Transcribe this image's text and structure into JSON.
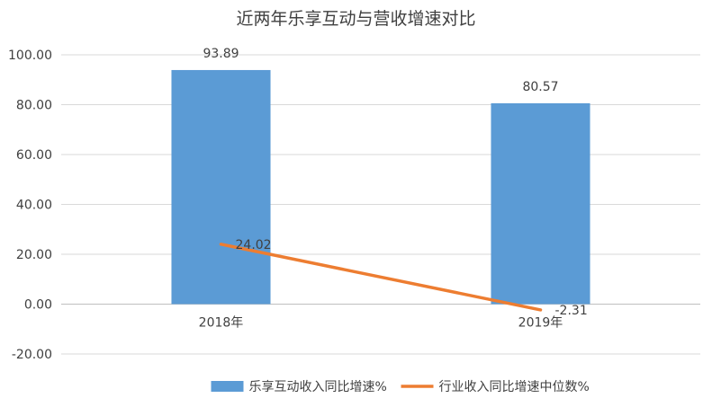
{
  "chart_data": {
    "type": "bar",
    "title": "近两年乐享互动与营收增速对比",
    "categories": [
      "2018年",
      "2019年"
    ],
    "series": [
      {
        "name": "乐享互动收入同比增速%",
        "type": "bar",
        "color": "#5B9BD5",
        "values": [
          93.89,
          80.57
        ],
        "labels": [
          "93.89",
          "80.57"
        ]
      },
      {
        "name": "行业收入同比增速中位数%",
        "type": "line",
        "color": "#ED7D31",
        "values": [
          24.02,
          -2.31
        ],
        "labels": [
          "24.02",
          "-2.31"
        ]
      }
    ],
    "ylim": [
      -20,
      100
    ],
    "yticks": [
      -20,
      0,
      20,
      40,
      60,
      80,
      100
    ],
    "ytick_labels": [
      "-20.00",
      "0.00",
      "20.00",
      "40.00",
      "60.00",
      "80.00",
      "100.00"
    ],
    "grid": true,
    "legend": "bottom"
  }
}
